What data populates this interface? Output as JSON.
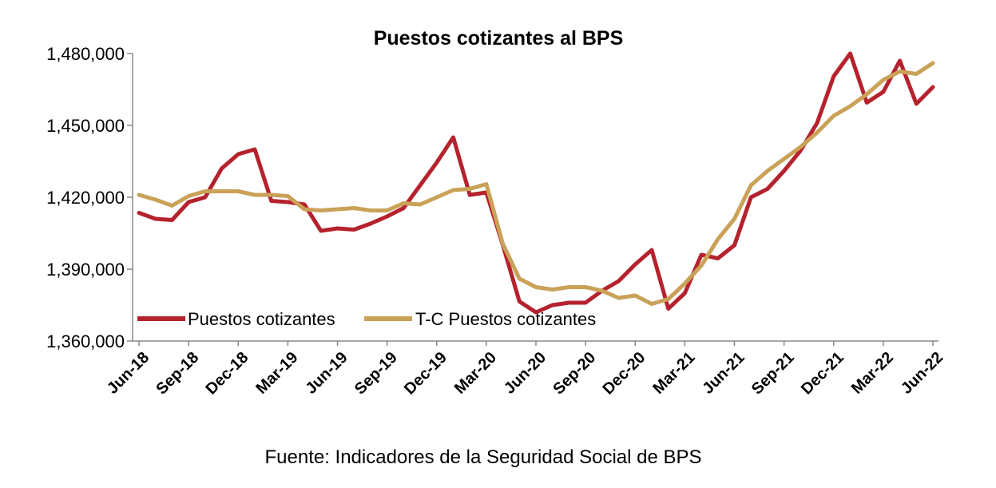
{
  "chart_data": {
    "type": "line",
    "title": "Puestos cotizantes al BPS",
    "source": "Fuente: Indicadores de la Seguridad Social de BPS",
    "ylim": [
      1360000,
      1480000
    ],
    "yticks": [
      1360000,
      1390000,
      1420000,
      1450000,
      1480000
    ],
    "ytick_labels": [
      "1,360,000",
      "1,390,000",
      "1,420,000",
      "1,450,000",
      "1,480,000"
    ],
    "x_tick_labels": [
      "Jun-18",
      "Sep-18",
      "Dec-18",
      "Mar-19",
      "Jun-19",
      "Sep-19",
      "Dec-19",
      "Mar-20",
      "Jun-20",
      "Sep-20",
      "Dec-20",
      "Mar-21",
      "Jun-21",
      "Sep-21",
      "Dec-21",
      "Mar-22",
      "Jun-22"
    ],
    "x": [
      "Jun-18",
      "Jul-18",
      "Aug-18",
      "Sep-18",
      "Oct-18",
      "Nov-18",
      "Dec-18",
      "Jan-19",
      "Feb-19",
      "Mar-19",
      "Apr-19",
      "May-19",
      "Jun-19",
      "Jul-19",
      "Aug-19",
      "Sep-19",
      "Oct-19",
      "Nov-19",
      "Dec-19",
      "Jan-20",
      "Feb-20",
      "Mar-20",
      "Apr-20",
      "May-20",
      "Jun-20",
      "Jul-20",
      "Aug-20",
      "Sep-20",
      "Oct-20",
      "Nov-20",
      "Dec-20",
      "Jan-21",
      "Feb-21",
      "Mar-21",
      "Apr-21",
      "May-21",
      "Jun-21",
      "Jul-21",
      "Aug-21",
      "Sep-21",
      "Oct-21",
      "Nov-21",
      "Dec-21",
      "Jan-22",
      "Feb-22",
      "Mar-22",
      "Apr-22",
      "May-22",
      "Jun-22"
    ],
    "legend_placement": "bottom-left",
    "grid": false,
    "series": [
      {
        "name": "Puestos cotizantes",
        "color": "#B5222D",
        "values": [
          1413500,
          1411000,
          1410500,
          1418000,
          1420000,
          1432000,
          1438000,
          1440000,
          1418500,
          1418000,
          1417000,
          1406000,
          1407000,
          1406500,
          1409000,
          1412000,
          1415500,
          1425000,
          1434500,
          1445000,
          1421000,
          1422000,
          1400000,
          1376500,
          1372000,
          1375000,
          1376000,
          1376000,
          1381000,
          1385000,
          1392000,
          1398000,
          1373500,
          1380000,
          1396000,
          1394500,
          1400000,
          1420000,
          1423500,
          1431000,
          1439500,
          1451000,
          1470500,
          1480000,
          1459500,
          1464000,
          1477000,
          1459000,
          1466000
        ]
      },
      {
        "name": "T-C Puestos cotizantes",
        "color": "#C9A258",
        "values": [
          1421000,
          1419000,
          1416500,
          1420500,
          1422500,
          1422500,
          1422500,
          1421000,
          1421000,
          1420500,
          1415000,
          1414500,
          1415000,
          1415500,
          1414500,
          1414500,
          1417500,
          1417000,
          1420000,
          1423000,
          1423500,
          1425500,
          1400500,
          1386000,
          1382500,
          1381500,
          1382500,
          1382500,
          1381000,
          1378000,
          1379000,
          1375500,
          1377500,
          1384000,
          1391500,
          1402500,
          1411000,
          1425000,
          1431000,
          1436000,
          1441000,
          1447000,
          1454000,
          1458000,
          1463000,
          1469000,
          1472500,
          1471500,
          1476000
        ]
      }
    ]
  }
}
